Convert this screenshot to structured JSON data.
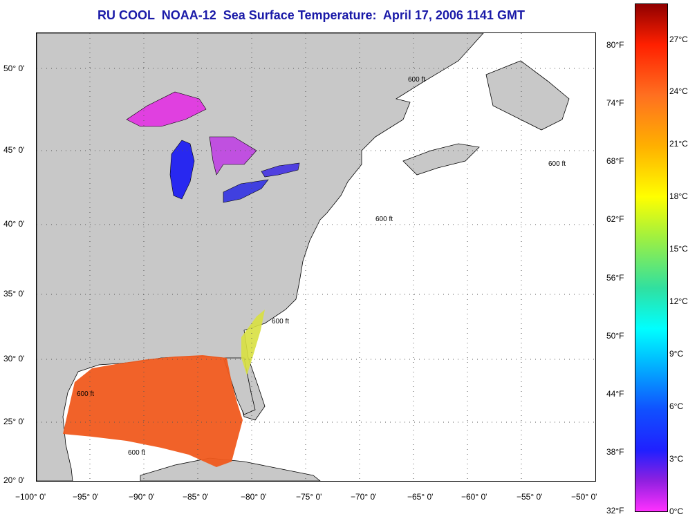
{
  "title": "RU COOL  NOAA-12  Sea Surface Temperature:  April 17, 2006 1141 GMT",
  "chart_data": {
    "type": "map",
    "longitude_ticks": [
      "−100° 0'",
      "−95° 0'",
      "−90° 0'",
      "−85° 0'",
      "−80° 0'",
      "−75° 0'",
      "−70° 0'",
      "−65° 0'",
      "−60° 0'",
      "−55° 0'",
      "−50° 0'"
    ],
    "latitude_ticks": [
      "50° 0'",
      "45° 0'",
      "40° 0'",
      "35° 0'",
      "30° 0'",
      "25° 0'",
      "20° 0'"
    ],
    "lon_range": [
      -100,
      -50
    ],
    "lat_range": [
      20,
      52.5
    ],
    "grid": "dotted",
    "contour_label": "600 ft",
    "colorbar": {
      "fahrenheit": [
        "80°F",
        "74°F",
        "68°F",
        "62°F",
        "56°F",
        "50°F",
        "44°F",
        "38°F",
        "32°F"
      ],
      "celsius": [
        "27°C",
        "24°C",
        "21°C",
        "18°C",
        "15°C",
        "12°C",
        "9°C",
        "6°C",
        "3°C",
        "0°C"
      ],
      "range_c": [
        0,
        28.5
      ]
    }
  },
  "colors": {
    "title": "#1a1aa8",
    "land": "#c8c8c8",
    "ocean": "#ffffff",
    "gulf_sst": "#f05a1e",
    "lakes_superior": "#e040e0",
    "lake_michigan": "#2828f0"
  },
  "icons": [
    "map-view",
    "colorbar"
  ]
}
